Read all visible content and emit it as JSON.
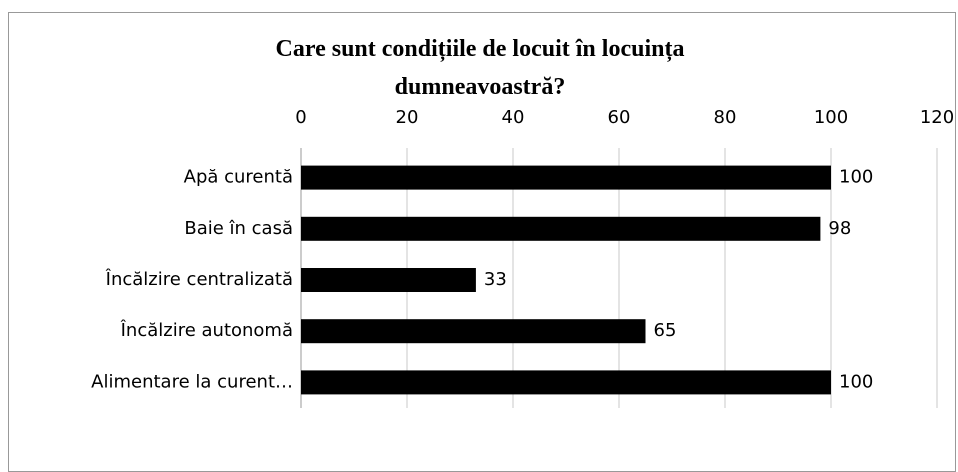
{
  "chart_data": {
    "type": "bar",
    "orientation": "horizontal",
    "title": "Care sunt condițiile de locuit în locuința dumneavoastră?",
    "categories": [
      "Apă curentă",
      "Baie în casă",
      "Încălzire centralizată",
      "Încălzire autonomă",
      "Alimentare la curent…"
    ],
    "values": [
      100,
      98,
      33,
      65,
      100
    ],
    "color": "#000000",
    "xlim": [
      0,
      120
    ],
    "xticks": [
      0,
      20,
      40,
      60,
      80,
      100,
      120
    ],
    "grid": true
  }
}
